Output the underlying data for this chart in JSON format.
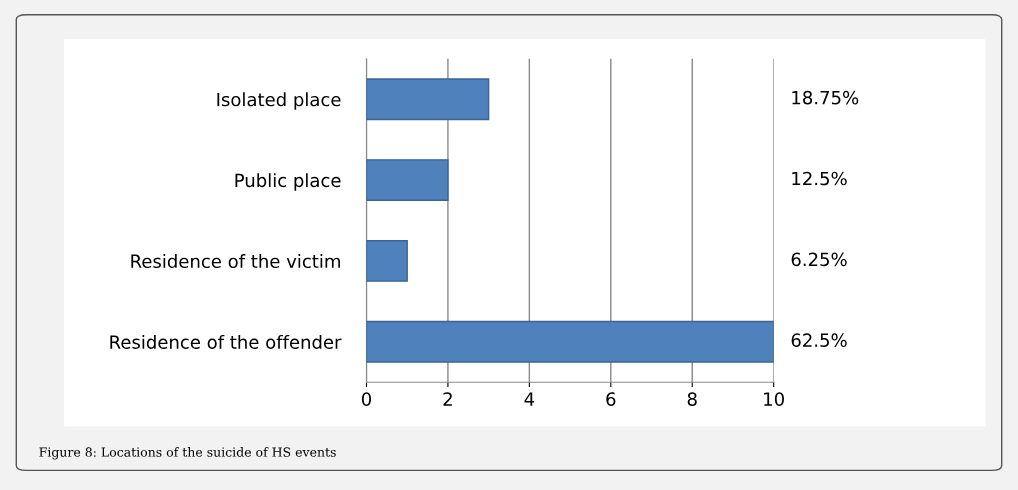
{
  "chart_data": {
    "type": "bar",
    "orientation": "horizontal",
    "categories": [
      "Isolated place",
      "Public place",
      "Residence of the victim",
      "Residence of the offender"
    ],
    "values": [
      3,
      2,
      1,
      10
    ],
    "color": "#4f81bd",
    "xlim": [
      0,
      10
    ],
    "xticks": [
      0,
      2,
      4,
      6,
      8,
      10
    ],
    "grid": "x",
    "annotations": [
      "18.75%",
      "12.5%",
      "6.25%",
      "62.5%",
      "Figure 8: Locations of the suicide of HS events"
    ]
  }
}
